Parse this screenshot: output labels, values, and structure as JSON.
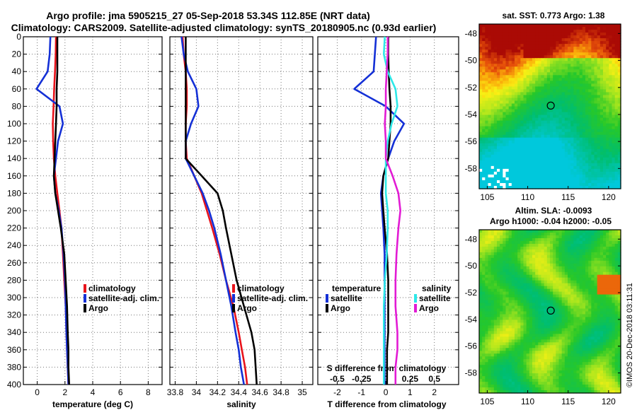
{
  "header": {
    "title_line1": "Argo profile: jma 5905215_27 05-Sep-2018 53.34S 112.85E (NRT data)",
    "title_line2": "Climatology: CARS2009. Satellite-adjusted climatology: synTS_20180905.nc (0.93d earlier)"
  },
  "credit": "©IMOS 20-Dec-2018 03:11:31",
  "colors": {
    "climatology": "#e8131b",
    "satellite": "#1430d6",
    "argo": "#000000",
    "sat_salinity": "#2ee8e8",
    "clim_salinity": "#e21bd4",
    "grid": "#777777"
  },
  "chart_data": [
    {
      "type": "line",
      "name": "temperature-profile",
      "xlabel": "temperature (deg C)",
      "ylabel": "",
      "xlim": [
        -1,
        9
      ],
      "ylim": [
        400,
        0
      ],
      "xticks": [
        0,
        2,
        4,
        6,
        8
      ],
      "xtick_labels": [
        "0",
        "2",
        "4",
        "6",
        "8"
      ],
      "yticks": [
        0,
        20,
        40,
        60,
        80,
        100,
        120,
        140,
        160,
        180,
        200,
        220,
        240,
        260,
        280,
        300,
        320,
        340,
        360,
        380,
        400
      ],
      "ytick_labels": [
        "0",
        "20",
        "40",
        "60",
        "80",
        "100",
        "120",
        "140",
        "160",
        "180",
        "200",
        "220",
        "240",
        "260",
        "280",
        "300",
        "320",
        "340",
        "360",
        "380",
        "400"
      ],
      "grid": true,
      "legend_placement": "right-middle",
      "series": [
        {
          "name": "climatology",
          "color_key": "climatology",
          "x": [
            1.35,
            1.33,
            1.28,
            1.22,
            1.18,
            1.12,
            1.15,
            1.2,
            1.3,
            1.45,
            1.6,
            1.75,
            1.85,
            1.95,
            2.05,
            2.1,
            2.15,
            2.2,
            2.25
          ],
          "depth": [
            0,
            20,
            40,
            60,
            80,
            100,
            120,
            140,
            160,
            180,
            200,
            220,
            250,
            280,
            310,
            340,
            360,
            380,
            400
          ]
        },
        {
          "name": "satellite-adj. clim.",
          "color_key": "satellite",
          "x": [
            0.95,
            0.9,
            0.75,
            -0.05,
            1.6,
            1.85,
            1.5,
            1.35,
            1.2,
            1.3,
            1.55,
            1.75,
            1.9,
            2.0,
            2.05,
            2.1,
            2.15,
            2.2,
            2.25
          ],
          "depth": [
            0,
            20,
            40,
            60,
            80,
            100,
            120,
            140,
            160,
            180,
            200,
            220,
            250,
            280,
            310,
            340,
            360,
            380,
            400
          ]
        },
        {
          "name": "Argo",
          "color_key": "argo",
          "x": [
            1.45,
            1.45,
            1.45,
            1.4,
            1.4,
            1.35,
            1.3,
            1.25,
            1.2,
            1.3,
            1.5,
            1.7,
            1.95,
            2.05,
            2.15,
            2.2,
            2.25,
            2.25,
            2.3
          ],
          "depth": [
            0,
            20,
            40,
            60,
            80,
            100,
            120,
            140,
            160,
            180,
            200,
            220,
            250,
            280,
            310,
            340,
            360,
            380,
            400
          ]
        }
      ]
    },
    {
      "type": "line",
      "name": "salinity-profile",
      "xlabel": "salinity",
      "xlim": [
        33.75,
        35.1
      ],
      "ylim": [
        400,
        0
      ],
      "xticks": [
        33.8,
        34,
        34.2,
        34.4,
        34.6,
        34.8,
        35
      ],
      "xtick_labels": [
        "33.8",
        "34",
        "34.2",
        "34.4",
        "34.6",
        "34.8",
        "35"
      ],
      "yticks": [
        0,
        20,
        40,
        60,
        80,
        100,
        120,
        140,
        160,
        180,
        200,
        220,
        240,
        260,
        280,
        300,
        320,
        340,
        360,
        380,
        400
      ],
      "grid": true,
      "legend_placement": "right-middle",
      "series": [
        {
          "name": "climatology",
          "color_key": "climatology",
          "x": [
            33.87,
            33.88,
            33.9,
            33.91,
            33.91,
            33.9,
            33.9,
            33.91,
            33.98,
            34.05,
            34.1,
            34.15,
            34.22,
            34.28,
            34.35,
            34.4,
            34.43,
            34.46,
            34.48
          ],
          "depth": [
            0,
            20,
            40,
            60,
            80,
            100,
            120,
            140,
            160,
            180,
            200,
            220,
            250,
            280,
            310,
            340,
            360,
            380,
            400
          ]
        },
        {
          "name": "satellite-adj. clim.",
          "color_key": "satellite",
          "x": [
            33.86,
            33.88,
            33.92,
            34.0,
            34.02,
            33.95,
            33.9,
            33.9,
            33.98,
            34.06,
            34.12,
            34.17,
            34.23,
            34.28,
            34.33,
            34.37,
            34.4,
            34.42,
            34.45
          ],
          "depth": [
            0,
            20,
            40,
            60,
            80,
            100,
            120,
            140,
            160,
            180,
            200,
            220,
            250,
            280,
            310,
            340,
            360,
            380,
            400
          ]
        },
        {
          "name": "Argo",
          "color_key": "argo",
          "x": [
            33.9,
            33.9,
            33.9,
            33.9,
            33.9,
            33.9,
            33.9,
            33.9,
            34.05,
            34.2,
            34.25,
            34.28,
            34.33,
            34.38,
            34.45,
            34.52,
            34.55,
            34.56,
            34.57
          ],
          "depth": [
            0,
            20,
            40,
            60,
            80,
            100,
            120,
            140,
            160,
            180,
            200,
            220,
            250,
            280,
            310,
            340,
            360,
            380,
            400
          ]
        }
      ]
    },
    {
      "type": "line",
      "name": "difference-profile",
      "xlabel": "T difference from climatology",
      "top_axis_title": "S difference from climatology",
      "xlim": [
        -2.8,
        3.0
      ],
      "ylim": [
        400,
        0
      ],
      "xticks": [
        -2,
        -1,
        0,
        1,
        2
      ],
      "xtick_labels": [
        "-2",
        "-1",
        "0",
        "1",
        "2"
      ],
      "s_ticks": [
        -0.5,
        -0.25,
        0,
        0.25,
        0.5
      ],
      "s_tick_labels": [
        "-0.5",
        "-0.25",
        "0",
        "0.25",
        "0.5"
      ],
      "s_xlim": [
        -0.7,
        0.75
      ],
      "yticks": [
        0,
        20,
        40,
        60,
        80,
        100,
        120,
        140,
        160,
        180,
        200,
        220,
        240,
        260,
        280,
        300,
        320,
        340,
        360,
        380,
        400
      ],
      "grid": true,
      "legend_title_left": "temperature",
      "legend_title_right": "salinity",
      "series": [
        {
          "name": "satellite",
          "group": "temperature",
          "color_key": "satellite",
          "x": [
            -0.4,
            -0.45,
            -0.5,
            -1.3,
            0.0,
            0.75,
            0.35,
            0.1,
            -0.1,
            -0.2,
            -0.15,
            -0.1,
            -0.05,
            -0.05,
            -0.05,
            -0.05,
            -0.05,
            -0.05,
            -0.05
          ],
          "depth": [
            0,
            20,
            40,
            60,
            80,
            100,
            120,
            140,
            160,
            180,
            200,
            220,
            250,
            280,
            310,
            340,
            360,
            380,
            400
          ]
        },
        {
          "name": "Argo",
          "group": "temperature",
          "color_key": "argo",
          "x": [
            0.1,
            0.1,
            0.12,
            0.15,
            0.2,
            0.2,
            0.15,
            0.1,
            -0.1,
            -0.15,
            -0.1,
            -0.05,
            0.05,
            0.1,
            0.1,
            0.1,
            0.05,
            0.05,
            0.05
          ],
          "depth": [
            0,
            20,
            40,
            60,
            80,
            100,
            120,
            140,
            160,
            180,
            200,
            220,
            250,
            280,
            310,
            340,
            360,
            380,
            400
          ]
        },
        {
          "name": "satellite",
          "group": "salinity",
          "color_key": "sat_salinity",
          "s": [
            -0.01,
            -0.02,
            0.02,
            0.1,
            0.12,
            0.06,
            0.02,
            0.0,
            0.0,
            0.0,
            0.02,
            0.02,
            0.01,
            -0.01,
            -0.02,
            -0.02,
            -0.02,
            -0.02,
            -0.02
          ],
          "depth": [
            0,
            20,
            40,
            60,
            80,
            100,
            120,
            140,
            160,
            180,
            200,
            220,
            250,
            280,
            310,
            340,
            360,
            380,
            400
          ]
        },
        {
          "name": "Argo",
          "group": "salinity",
          "color_key": "clim_salinity",
          "s": [
            0.02,
            0.02,
            0.01,
            0.0,
            0.0,
            -0.01,
            0.0,
            0.0,
            0.07,
            0.13,
            0.15,
            0.13,
            0.11,
            0.1,
            0.1,
            0.12,
            0.12,
            0.1,
            0.1
          ],
          "depth": [
            0,
            20,
            40,
            60,
            80,
            100,
            120,
            140,
            160,
            180,
            200,
            220,
            250,
            280,
            310,
            340,
            360,
            380,
            400
          ]
        }
      ]
    },
    {
      "type": "heatmap",
      "name": "sst-map",
      "title": "sat. SST: 0.773 Argo: 1.38",
      "xlim": [
        104,
        121.5
      ],
      "ylim": [
        -59.5,
        -47.3
      ],
      "xticks": [
        105,
        110,
        115,
        120
      ],
      "xtick_labels": [
        "105",
        "110",
        "115",
        "120"
      ],
      "yticks": [
        -48,
        -50,
        -52,
        -54,
        -56,
        -58
      ],
      "ytick_labels": [
        "-48",
        "-50",
        "-52",
        "-54",
        "-56",
        "-58"
      ],
      "marker": {
        "lon": 112.85,
        "lat": -53.34
      }
    },
    {
      "type": "heatmap",
      "name": "sla-map",
      "title_line1": "Altim. SLA: -0.0093",
      "title_line2": "Argo h1000: -0.04 h2000: -0.05",
      "xlim": [
        104,
        121.5
      ],
      "ylim": [
        -59.5,
        -47.3
      ],
      "xticks": [
        105,
        110,
        115,
        120
      ],
      "xtick_labels": [
        "105",
        "110",
        "115",
        "120"
      ],
      "yticks": [
        -48,
        -50,
        -52,
        -54,
        -56,
        -58
      ],
      "ytick_labels": [
        "-48",
        "-50",
        "-52",
        "-54",
        "-56",
        "-58"
      ],
      "marker": {
        "lon": 112.85,
        "lat": -53.34
      }
    }
  ]
}
